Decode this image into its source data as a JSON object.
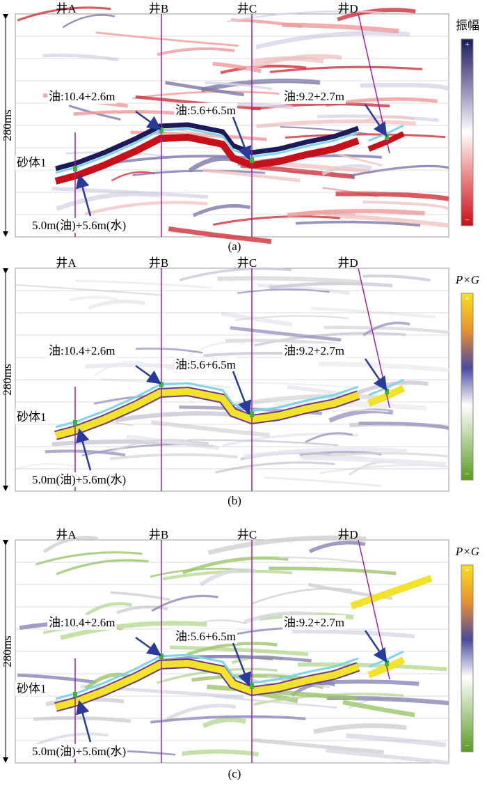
{
  "panels": [
    {
      "label": "(a)",
      "wells": [
        "井A",
        "井B",
        "井C",
        "井D"
      ],
      "time_span": "280ms",
      "sand_body": "砂体1",
      "annotations": [
        "油:10.4+2.6m",
        "油:5.6+6.5m",
        "油:9.2+2.7m",
        "5.0m(油)+5.6m(水)"
      ],
      "colorbar": {
        "title": "振幅",
        "max": "+",
        "min": "−"
      }
    },
    {
      "label": "(b)",
      "wells": [
        "井A",
        "井B",
        "井C",
        "井D"
      ],
      "time_span": "280ms",
      "sand_body": "砂体1",
      "annotations": [
        "油:10.4+2.6m",
        "油:5.6+6.5m",
        "油:9.2+2.7m",
        "5.0m(油)+5.6m(水)"
      ],
      "colorbar": {
        "title": "P×G",
        "max": "+",
        "min": "−"
      }
    },
    {
      "label": "(c)",
      "wells": [
        "井A",
        "井B",
        "井C",
        "井D"
      ],
      "time_span": "280ms",
      "sand_body": "砂体1",
      "annotations": [
        "油:10.4+2.6m",
        "油:5.6+6.5m",
        "油:9.2+2.7m",
        "5.0m(油)+5.6m(水)"
      ],
      "colorbar": {
        "title": "P×G",
        "max": "+",
        "min": "−"
      }
    }
  ]
}
